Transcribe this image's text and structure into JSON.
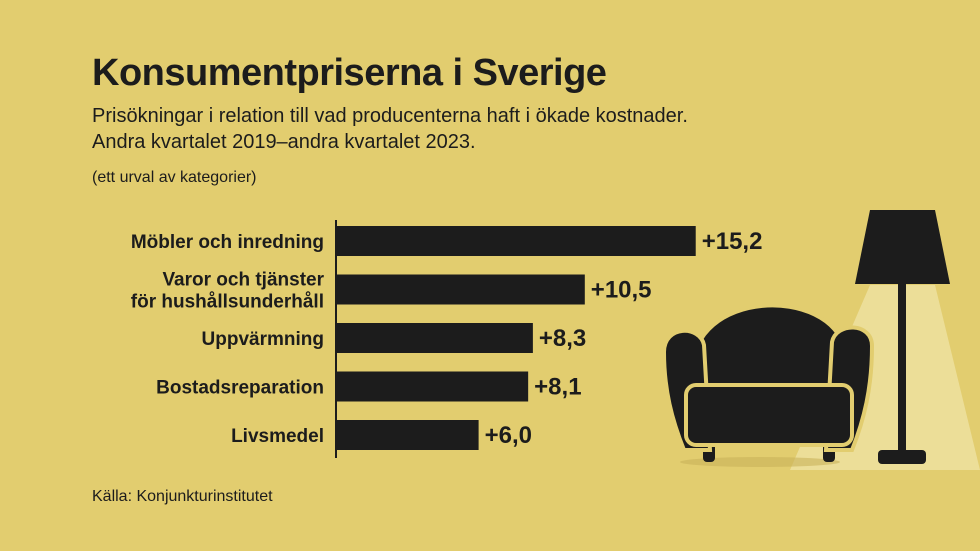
{
  "title": "Konsumentpriserna i Sverige",
  "subtitle_line1": "Prisökningar i relation till vad producenterna haft i ökade kostnader.",
  "subtitle_line2": "Andra kvartalet 2019–andra kvartalet 2023.",
  "note": "(ett urval av kategorier)",
  "source": "Källa: Konjunkturinstitutet",
  "colors": {
    "background": "#e2cd6f",
    "bar": "#1c1c1c",
    "text": "#1c1c1c"
  },
  "chart_data": {
    "type": "bar",
    "orientation": "horizontal",
    "categories": [
      [
        "Möbler och inredning"
      ],
      [
        "Varor och tjänster",
        "för hushållsunderhåll"
      ],
      [
        "Uppvärmning"
      ],
      [
        "Bostadsreparation"
      ],
      [
        "Livsmedel"
      ]
    ],
    "values": [
      15.2,
      10.5,
      8.3,
      8.1,
      6.0
    ],
    "value_labels": [
      "+15,2",
      "+10,5",
      "+8,3",
      "+8,1",
      "+6,0"
    ],
    "xlim": [
      0,
      20
    ],
    "grid": false
  }
}
